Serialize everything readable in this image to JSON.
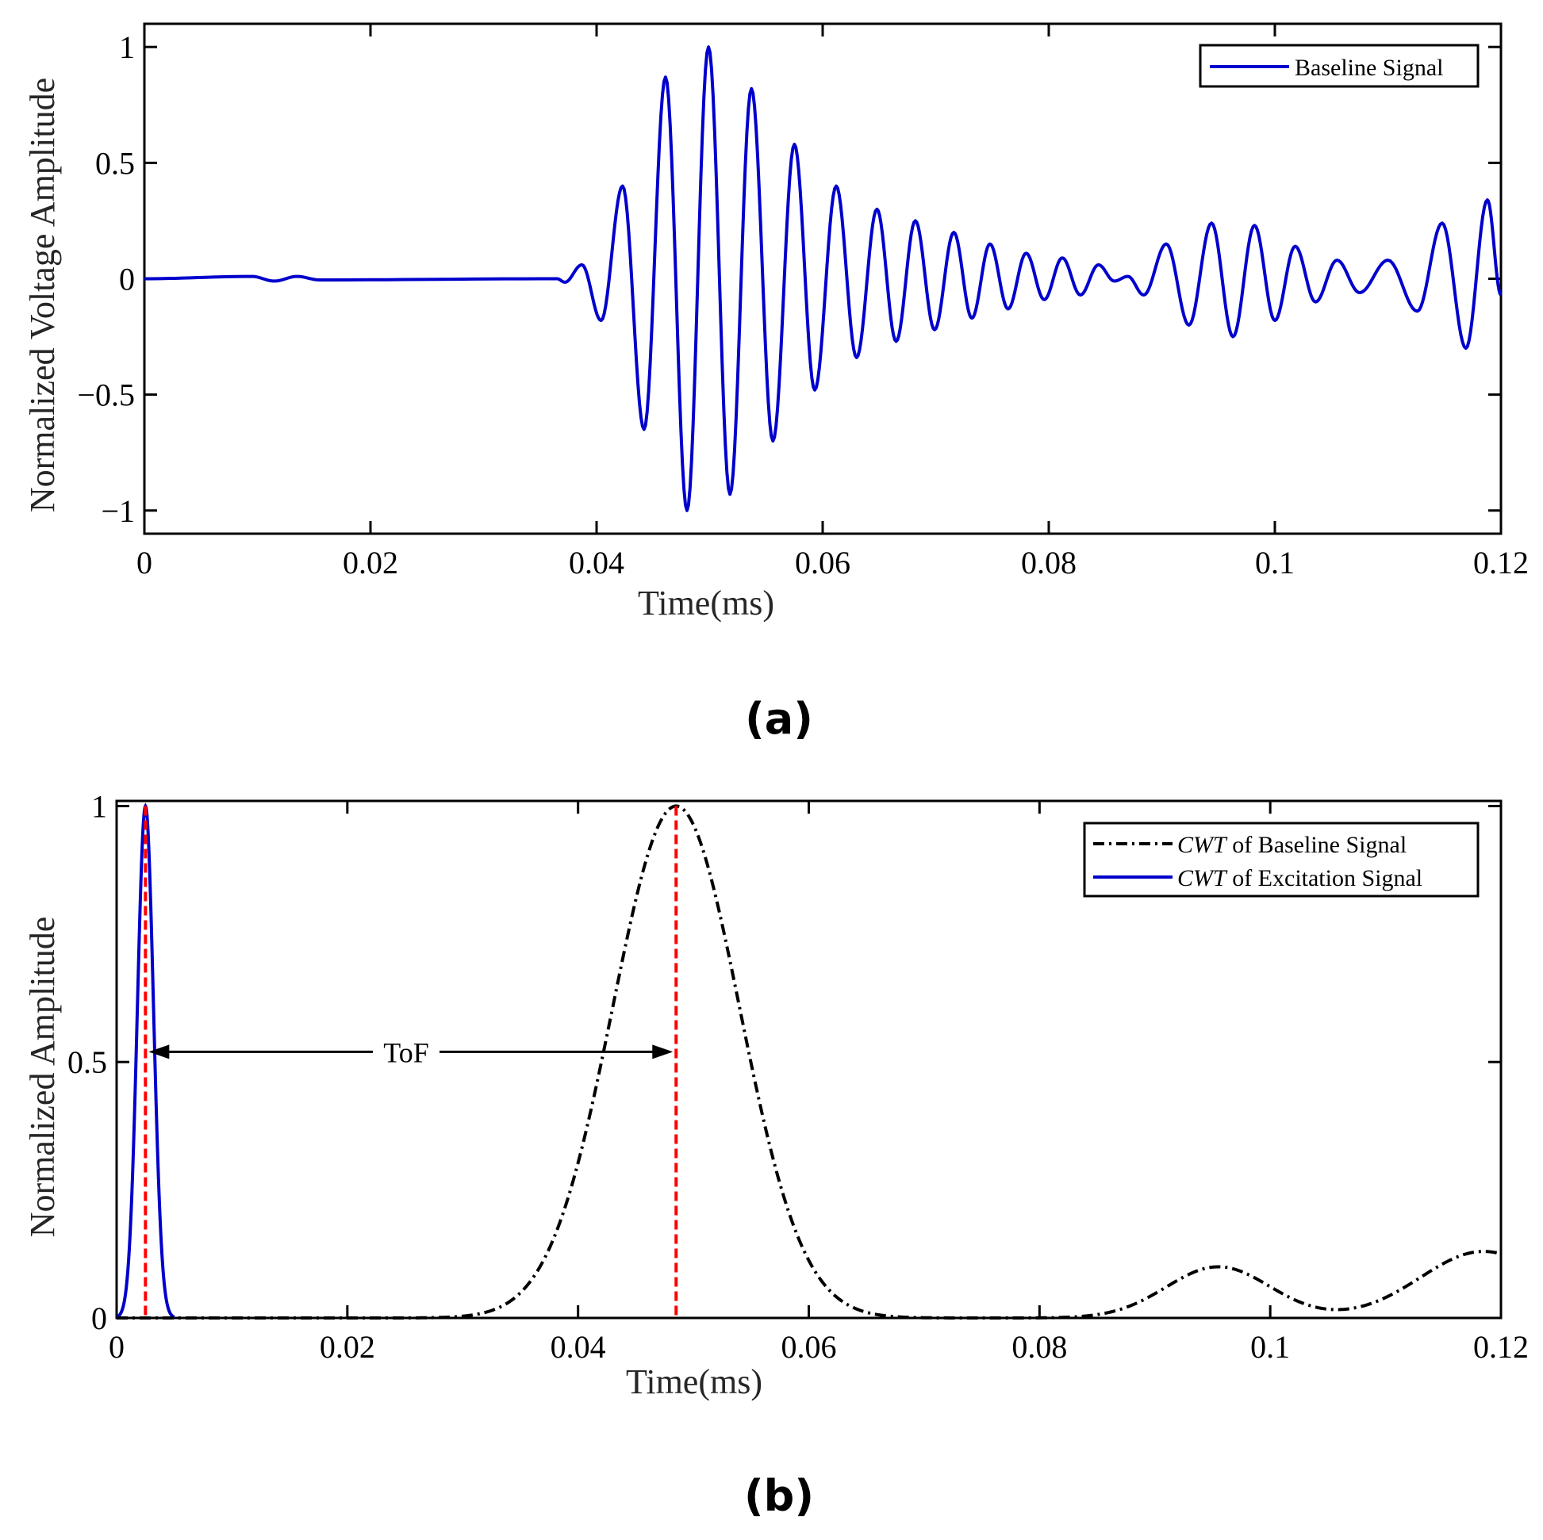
{
  "chart_data": [
    {
      "panel": "(a)",
      "type": "line",
      "title": "",
      "xlabel": "Time(ms)",
      "ylabel": "Normalized Voltage Amplitude",
      "xlim": [
        0,
        0.12
      ],
      "ylim": [
        -1.1,
        1.1
      ],
      "xticks": [
        0,
        0.02,
        0.04,
        0.06,
        0.08,
        0.1,
        0.12
      ],
      "xtick_labels": [
        "0",
        "0.02",
        "0.04",
        "0.06",
        "0.08",
        "0.1",
        "0.12"
      ],
      "yticks": [
        -1,
        -0.5,
        0,
        0.5,
        1
      ],
      "ytick_labels": [
        "−1",
        "−0.5",
        "0",
        "0.5",
        "1"
      ],
      "grid": false,
      "legend_position": "top-right",
      "series": [
        {
          "name": "Baseline Signal",
          "color": "#0000cc",
          "style": "solid",
          "peaks": [
            [
              0.0,
              0.0
            ],
            [
              0.0095,
              0.01
            ],
            [
              0.0115,
              -0.01
            ],
            [
              0.0135,
              0.01
            ],
            [
              0.0155,
              -0.005
            ],
            [
              0.0365,
              0.0
            ],
            [
              0.0372,
              -0.015
            ],
            [
              0.0387,
              0.06
            ],
            [
              0.0404,
              -0.18
            ],
            [
              0.0423,
              0.4
            ],
            [
              0.0442,
              -0.65
            ],
            [
              0.0461,
              0.87
            ],
            [
              0.048,
              -1.0
            ],
            [
              0.0499,
              1.0
            ],
            [
              0.0518,
              -0.93
            ],
            [
              0.0537,
              0.82
            ],
            [
              0.0556,
              -0.7
            ],
            [
              0.0575,
              0.58
            ],
            [
              0.0593,
              -0.48
            ],
            [
              0.0612,
              0.4
            ],
            [
              0.063,
              -0.34
            ],
            [
              0.0648,
              0.3
            ],
            [
              0.0665,
              -0.27
            ],
            [
              0.0682,
              0.25
            ],
            [
              0.0699,
              -0.22
            ],
            [
              0.0716,
              0.2
            ],
            [
              0.0732,
              -0.17
            ],
            [
              0.0748,
              0.15
            ],
            [
              0.0764,
              -0.13
            ],
            [
              0.078,
              0.11
            ],
            [
              0.0796,
              -0.09
            ],
            [
              0.0812,
              0.09
            ],
            [
              0.0828,
              -0.07
            ],
            [
              0.0844,
              0.06
            ],
            [
              0.0858,
              -0.01
            ],
            [
              0.087,
              0.01
            ],
            [
              0.0884,
              -0.07
            ],
            [
              0.0904,
              0.15
            ],
            [
              0.0924,
              -0.2
            ],
            [
              0.0944,
              0.24
            ],
            [
              0.0963,
              -0.25
            ],
            [
              0.0982,
              0.23
            ],
            [
              0.1,
              -0.18
            ],
            [
              0.1018,
              0.14
            ],
            [
              0.1036,
              -0.1
            ],
            [
              0.1055,
              0.08
            ],
            [
              0.1075,
              -0.06
            ],
            [
              0.11,
              0.08
            ],
            [
              0.1126,
              -0.14
            ],
            [
              0.1148,
              0.24
            ],
            [
              0.1169,
              -0.3
            ],
            [
              0.1188,
              0.34
            ],
            [
              0.12,
              -0.07
            ]
          ]
        }
      ]
    },
    {
      "panel": "(b)",
      "type": "line",
      "title": "",
      "xlabel": "Time(ms)",
      "ylabel": "Normalized Amplitude",
      "xlim": [
        0,
        0.12
      ],
      "ylim": [
        0,
        1.01
      ],
      "xticks": [
        0,
        0.02,
        0.04,
        0.06,
        0.08,
        0.1,
        0.12
      ],
      "xtick_labels": [
        "0",
        "0.02",
        "0.04",
        "0.06",
        "0.08",
        "0.1",
        "0.12"
      ],
      "yticks": [
        0,
        0.5,
        1
      ],
      "ytick_labels": [
        "0",
        "0.5",
        "1"
      ],
      "grid": false,
      "legend_position": "top-right",
      "series": [
        {
          "name_italic": "CWT",
          "name": " of Baseline Signal",
          "color": "#000000",
          "style": "dash-dot",
          "components": [
            {
              "center": 0.0485,
              "amplitude": 1.0,
              "sigma": 0.0055
            },
            {
              "center": 0.0955,
              "amplitude": 0.1,
              "sigma": 0.0045
            },
            {
              "center": 0.1185,
              "amplitude": 0.13,
              "sigma": 0.0055
            }
          ]
        },
        {
          "name_italic": "CWT",
          "name": " of Excitation Signal",
          "color": "#0000cc",
          "style": "solid",
          "components": [
            {
              "center": 0.0025,
              "amplitude": 1.0,
              "sigma": 0.0007
            }
          ]
        }
      ],
      "markers": [
        {
          "x": 0.0025,
          "color": "#ff0000",
          "style": "dashed"
        },
        {
          "x": 0.0485,
          "color": "#ff0000",
          "style": "dashed"
        }
      ],
      "annotation": {
        "text": "ToF",
        "x_from": 0.0025,
        "x_to": 0.0485,
        "y": 0.52
      }
    }
  ],
  "panel_labels": [
    "(a)",
    "(b)"
  ]
}
